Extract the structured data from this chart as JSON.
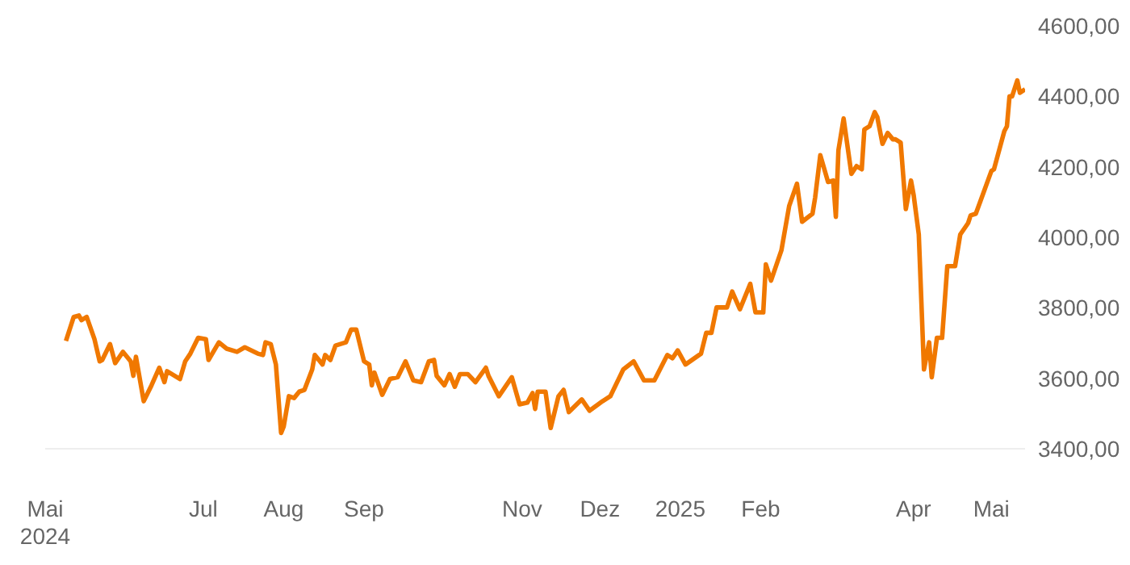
{
  "chart_data": {
    "type": "line",
    "legend": false,
    "grid": false,
    "marker": "none",
    "line_style": "solid",
    "xticks": [
      {
        "value": "2024-05-01",
        "label": "Mai\n2024"
      },
      {
        "value": "2024-07-01",
        "label": "Jul"
      },
      {
        "value": "2024-08-01",
        "label": "Aug"
      },
      {
        "value": "2024-09-01",
        "label": "Sep"
      },
      {
        "value": "2024-11-01",
        "label": "Nov"
      },
      {
        "value": "2024-12-01",
        "label": "Dez"
      },
      {
        "value": "2025-01-01",
        "label": "2025"
      },
      {
        "value": "2025-02-01",
        "label": "Feb"
      },
      {
        "value": "2025-04-01",
        "label": "Apr"
      },
      {
        "value": "2025-05-01",
        "label": "Mai"
      }
    ],
    "xlim": [
      "2024-05-01",
      "2025-05-14"
    ],
    "ylim": [
      3400,
      4600
    ],
    "yticks": [
      {
        "value": 3400,
        "label": "3400,00"
      },
      {
        "value": 3600,
        "label": "3600,00"
      },
      {
        "value": 3800,
        "label": "3800,00"
      },
      {
        "value": 4000,
        "label": "4000,00"
      },
      {
        "value": 4200,
        "label": "4200,00"
      },
      {
        "value": 4400,
        "label": "4400,00"
      },
      {
        "value": 4600,
        "label": "4600,00"
      }
    ],
    "x": [
      "2024-05-09",
      "2024-05-12",
      "2024-05-14",
      "2024-05-15",
      "2024-05-17",
      "2024-05-20",
      "2024-05-22",
      "2024-05-23",
      "2024-05-26",
      "2024-05-28",
      "2024-05-31",
      "2024-06-03",
      "2024-06-04",
      "2024-06-05",
      "2024-06-08",
      "2024-06-11",
      "2024-06-14",
      "2024-06-16",
      "2024-06-17",
      "2024-06-22",
      "2024-06-24",
      "2024-06-26",
      "2024-06-29",
      "2024-07-02",
      "2024-07-03",
      "2024-07-07",
      "2024-07-10",
      "2024-07-14",
      "2024-07-17",
      "2024-07-22",
      "2024-07-24",
      "2024-07-25",
      "2024-07-27",
      "2024-07-29",
      "2024-07-31",
      "2024-08-01",
      "2024-08-03",
      "2024-08-05",
      "2024-08-07",
      "2024-08-09",
      "2024-08-12",
      "2024-08-13",
      "2024-08-16",
      "2024-08-17",
      "2024-08-19",
      "2024-08-21",
      "2024-08-25",
      "2024-08-27",
      "2024-08-29",
      "2024-09-01",
      "2024-09-03",
      "2024-09-04",
      "2024-09-05",
      "2024-09-08",
      "2024-09-11",
      "2024-09-14",
      "2024-09-17",
      "2024-09-20",
      "2024-09-23",
      "2024-09-26",
      "2024-09-28",
      "2024-09-29",
      "2024-10-02",
      "2024-10-04",
      "2024-10-06",
      "2024-10-08",
      "2024-10-11",
      "2024-10-14",
      "2024-10-18",
      "2024-10-19",
      "2024-10-23",
      "2024-10-28",
      "2024-10-31",
      "2024-11-03",
      "2024-11-05",
      "2024-11-06",
      "2024-11-07",
      "2024-11-10",
      "2024-11-12",
      "2024-11-15",
      "2024-11-17",
      "2024-11-19",
      "2024-11-24",
      "2024-11-27",
      "2024-12-02",
      "2024-12-05",
      "2024-12-10",
      "2024-12-14",
      "2024-12-18",
      "2024-12-22",
      "2024-12-27",
      "2024-12-29",
      "2024-12-31",
      "2025-01-03",
      "2025-01-09",
      "2025-01-11",
      "2025-01-13",
      "2025-01-15",
      "2025-01-19",
      "2025-01-21",
      "2025-01-24",
      "2025-01-28",
      "2025-01-30",
      "2025-02-02",
      "2025-02-03",
      "2025-02-05",
      "2025-02-09",
      "2025-02-12",
      "2025-02-15",
      "2025-02-17",
      "2025-02-21",
      "2025-02-22",
      "2025-02-24",
      "2025-02-27",
      "2025-03-01",
      "2025-03-02",
      "2025-03-03",
      "2025-03-05",
      "2025-03-08",
      "2025-03-10",
      "2025-03-12",
      "2025-03-13",
      "2025-03-15",
      "2025-03-17",
      "2025-03-18",
      "2025-03-20",
      "2025-03-22",
      "2025-03-24",
      "2025-03-25",
      "2025-03-27",
      "2025-03-29",
      "2025-03-31",
      "2025-04-01",
      "2025-04-03",
      "2025-04-05",
      "2025-04-07",
      "2025-04-08",
      "2025-04-10",
      "2025-04-12",
      "2025-04-14",
      "2025-04-17",
      "2025-04-19",
      "2025-04-22",
      "2025-04-23",
      "2025-04-25",
      "2025-04-27",
      "2025-05-01",
      "2025-05-02",
      "2025-05-06",
      "2025-05-07",
      "2025-05-08",
      "2025-05-09",
      "2025-05-11",
      "2025-05-12",
      "2025-05-14"
    ],
    "series": [
      {
        "color": "#f07800",
        "values": [
          3706,
          3774,
          3778,
          3765,
          3774,
          3711,
          3648,
          3652,
          3697,
          3643,
          3675,
          3648,
          3607,
          3661,
          3535,
          3580,
          3630,
          3589,
          3620,
          3598,
          3648,
          3670,
          3715,
          3711,
          3652,
          3702,
          3684,
          3675,
          3688,
          3670,
          3666,
          3702,
          3697,
          3639,
          3445,
          3463,
          3549,
          3544,
          3562,
          3567,
          3625,
          3666,
          3639,
          3666,
          3652,
          3693,
          3702,
          3738,
          3738,
          3648,
          3639,
          3580,
          3616,
          3553,
          3598,
          3603,
          3648,
          3594,
          3589,
          3648,
          3652,
          3607,
          3580,
          3612,
          3576,
          3612,
          3612,
          3589,
          3630,
          3607,
          3549,
          3603,
          3526,
          3531,
          3558,
          3513,
          3562,
          3562,
          3459,
          3549,
          3567,
          3504,
          3540,
          3508,
          3535,
          3549,
          3625,
          3648,
          3594,
          3594,
          3666,
          3657,
          3679,
          3639,
          3670,
          3729,
          3729,
          3801,
          3801,
          3846,
          3796,
          3868,
          3787,
          3787,
          3923,
          3877,
          3963,
          4089,
          4152,
          4044,
          4067,
          4112,
          4233,
          4157,
          4161,
          4058,
          4247,
          4337,
          4180,
          4202,
          4193,
          4306,
          4315,
          4355,
          4341,
          4265,
          4296,
          4278,
          4278,
          4269,
          4080,
          4161,
          4121,
          4008,
          3625,
          3702,
          3603,
          3715,
          3715,
          3918,
          3918,
          4008,
          4040,
          4062,
          4067,
          4107,
          4188,
          4193,
          4301,
          4315,
          4400,
          4400,
          4445,
          4410,
          4420
        ]
      }
    ]
  }
}
